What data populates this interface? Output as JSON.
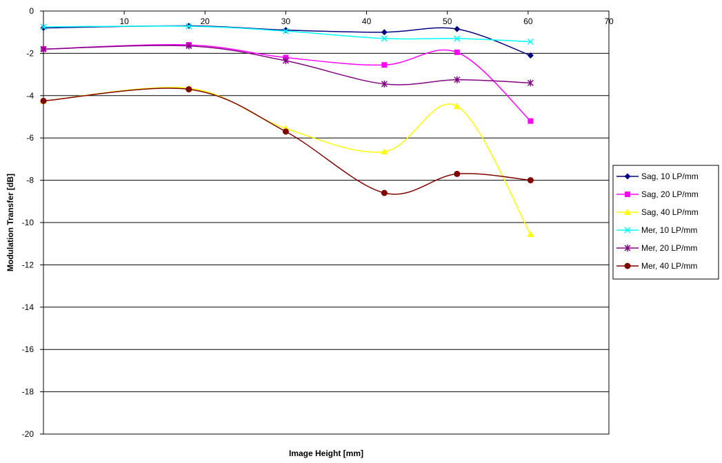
{
  "chart_data": {
    "type": "line",
    "title": "",
    "xlabel": "Image Height [mm]",
    "ylabel": "Modulation Transfer [dB]",
    "xlim": [
      0,
      70
    ],
    "ylim": [
      -20,
      0
    ],
    "x_ticks": [
      10,
      20,
      30,
      40,
      50,
      60,
      70
    ],
    "y_ticks": [
      0,
      -2,
      -4,
      -6,
      -8,
      -10,
      -12,
      -14,
      -16,
      -18,
      -20
    ],
    "x_tick_labels": [
      "10",
      "20",
      "30",
      "40",
      "50",
      "60",
      "70"
    ],
    "y_tick_labels": [
      "0",
      "-2",
      "-4",
      "-6",
      "-8",
      "-10",
      "-12",
      "-14",
      "-16",
      "-18",
      "-20"
    ],
    "x_axis_position": "top (at y = 0)",
    "gridlines": "horizontal",
    "smoothed": true,
    "legend_position": "right",
    "series": [
      {
        "name": "Sag, 10 LP/mm",
        "color": "#000080",
        "marker": "diamond",
        "x": [
          0,
          18,
          30,
          42.2,
          51.2,
          60.3
        ],
        "y": [
          -0.8,
          -0.7,
          -0.9,
          -1.0,
          -0.85,
          -2.1
        ]
      },
      {
        "name": "Sag, 20 LP/mm",
        "color": "#ff00ff",
        "marker": "square",
        "x": [
          0,
          18,
          30,
          42.2,
          51.2,
          60.3
        ],
        "y": [
          -1.8,
          -1.6,
          -2.2,
          -2.55,
          -1.95,
          -5.2
        ]
      },
      {
        "name": "Sag, 40 LP/mm",
        "color": "#ffff00",
        "marker": "triangle",
        "x": [
          0,
          18,
          30,
          42.2,
          51.2,
          60.3
        ],
        "y": [
          -4.25,
          -3.65,
          -5.55,
          -6.65,
          -4.5,
          -10.55
        ]
      },
      {
        "name": "Mer, 10 LP/mm",
        "color": "#00ffff",
        "marker": "x",
        "x": [
          0,
          18,
          30,
          42.2,
          51.2,
          60.3
        ],
        "y": [
          -0.75,
          -0.72,
          -0.95,
          -1.3,
          -1.3,
          -1.45
        ]
      },
      {
        "name": "Mer, 20 LP/mm",
        "color": "#800080",
        "marker": "star",
        "x": [
          0,
          18,
          30,
          42.2,
          51.2,
          60.3
        ],
        "y": [
          -1.8,
          -1.65,
          -2.35,
          -3.45,
          -3.25,
          -3.4
        ]
      },
      {
        "name": "Mer, 40 LP/mm",
        "color": "#800000",
        "marker": "circle",
        "x": [
          0,
          18,
          30,
          42.2,
          51.2,
          60.3
        ],
        "y": [
          -4.25,
          -3.7,
          -5.7,
          -8.6,
          -7.7,
          -8.0
        ]
      }
    ]
  }
}
